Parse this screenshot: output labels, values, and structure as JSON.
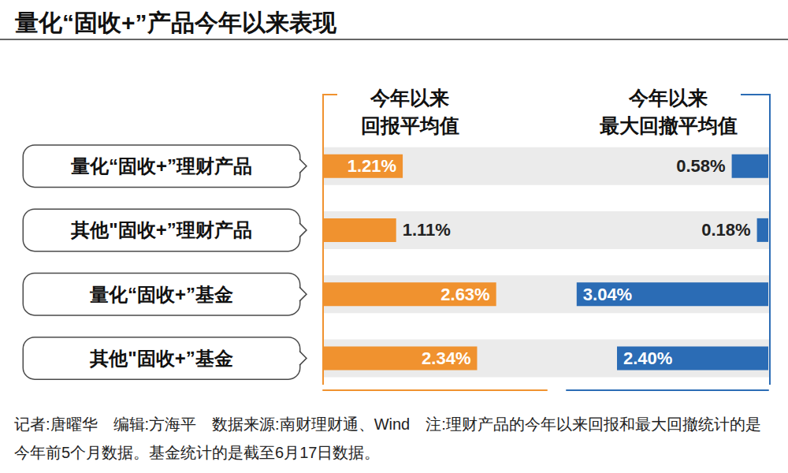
{
  "title": "量化“固收+”产品今年以来表现",
  "caption": "记者:唐曜华　编辑:方海平　数据来源:南财理财通、Wind　注:理财产品的今年以来回报和最大回撤统计的是今年前5个月数据。基金统计的是截至6月17日数据。",
  "chart_data": [
    {
      "type": "bar",
      "title": "今年以来回报平均值",
      "orientation": "horizontal",
      "categories": [
        "量化“固收+”理财产品",
        "其他\"固收+”理财产品",
        "量化“固收+”基金",
        "其他\"固收+”基金"
      ],
      "values": [
        1.21,
        1.11,
        2.63,
        2.34
      ],
      "value_labels": [
        "1.21%",
        "1.11%",
        "2.63%",
        "2.34%"
      ],
      "color": "#f0922f",
      "xlim": [
        0,
        3.4
      ],
      "xticks": [],
      "grid": false,
      "data_labels": true,
      "tick_labels": "y"
    },
    {
      "type": "bar",
      "title": "今年以来最大回撤平均值",
      "orientation": "horizontal",
      "categories": [
        "量化“固收+”理财产品",
        "其他\"固收+”理财产品",
        "量化“固收+”基金",
        "其他\"固收+”基金"
      ],
      "values": [
        0.58,
        0.18,
        3.04,
        2.4
      ],
      "value_labels": [
        "0.58%",
        "0.18%",
        "3.04%",
        "2.40%"
      ],
      "color": "#2b6cb5",
      "xlim": [
        0,
        3.2
      ],
      "xticks": [],
      "grid": false,
      "data_labels": true,
      "tick_labels": false
    }
  ]
}
